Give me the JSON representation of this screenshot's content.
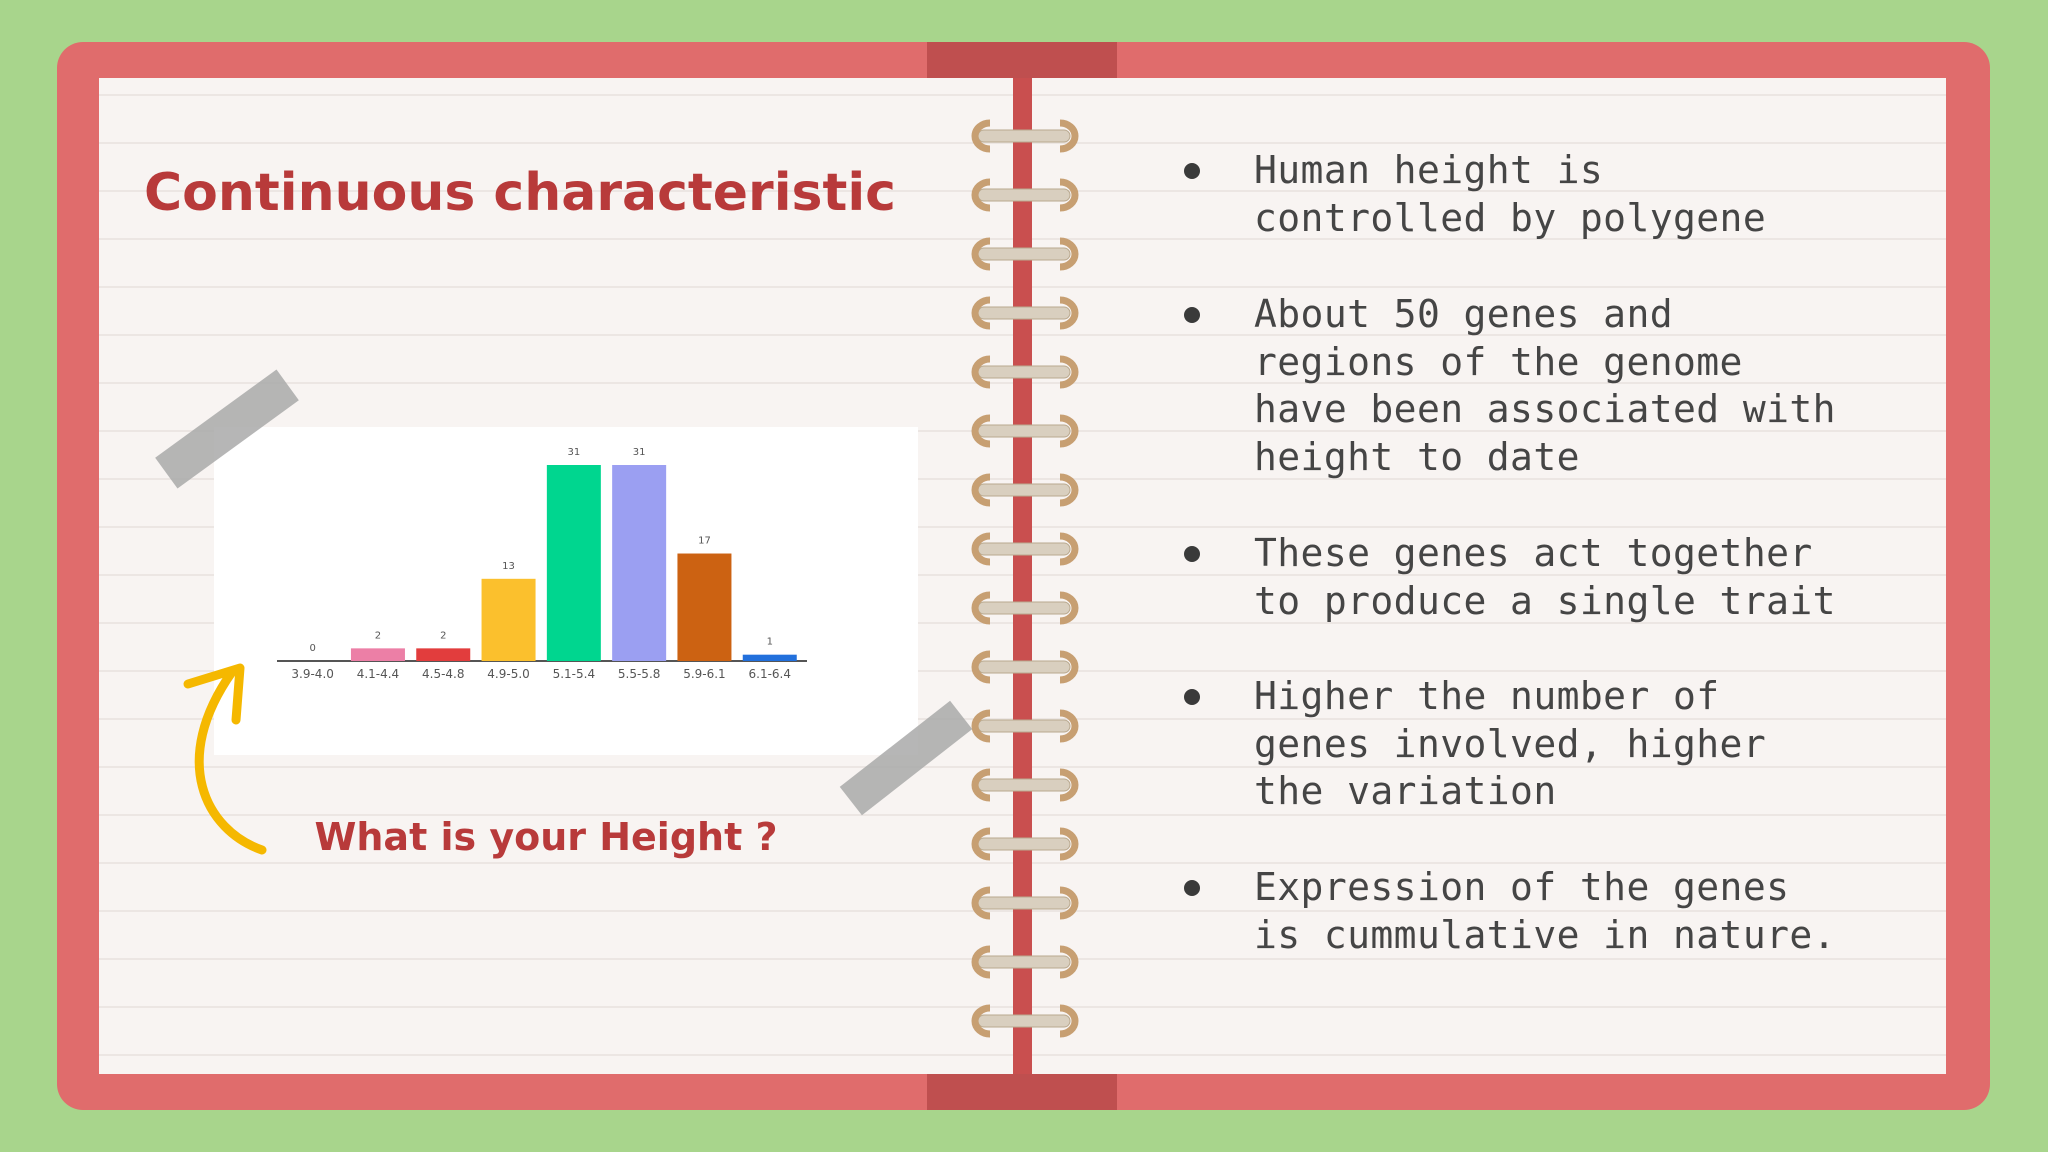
{
  "title": "Continuous characteristic",
  "chart_data": {
    "type": "bar",
    "categories": [
      "3.9-4.0",
      "4.1-4.4",
      "4.5-4.8",
      "4.9-5.0",
      "5.1-5.4",
      "5.5-5.8",
      "5.9-6.1",
      "6.1-6.4"
    ],
    "values": [
      0,
      2,
      2,
      13,
      31,
      31,
      17,
      1
    ],
    "colors": [
      "#9e9e9e",
      "#ec7fa6",
      "#e23d3d",
      "#fbc02d",
      "#00d68f",
      "#9b9ff2",
      "#cc6212",
      "#2270dc"
    ]
  },
  "caption": "What is your Height ?",
  "bullets": [
    "Human height is controlled by polygene",
    "About 50 genes and regions of the genome have been associated with height to date",
    "These genes act together to produce a single trait",
    "Higher the number of genes involved, higher the variation",
    "Expression of the genes is cummulative in nature."
  ]
}
